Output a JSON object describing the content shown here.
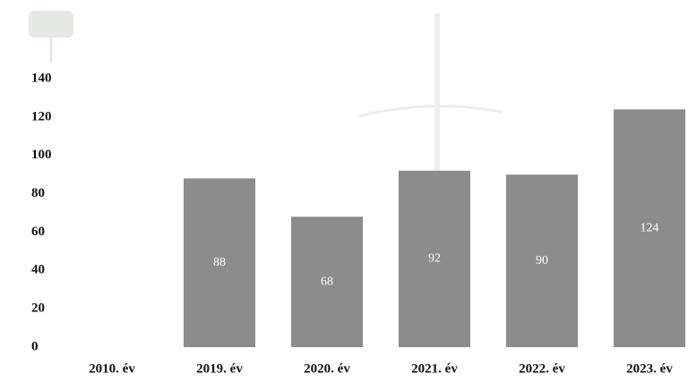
{
  "chart_data": {
    "type": "bar",
    "categories": [
      "2010. év",
      "2019. év",
      "2020. év",
      "2021. év",
      "2022. év",
      "2023. év"
    ],
    "values": [
      null,
      88,
      68,
      92,
      90,
      124
    ],
    "value_labels": [
      null,
      "88",
      "68",
      "92",
      "90",
      "124"
    ],
    "color": "#8c8c8c",
    "ylim": [
      0,
      140
    ],
    "yticks": [
      0,
      20,
      40,
      60,
      80,
      100,
      120,
      140
    ],
    "grid": false
  }
}
